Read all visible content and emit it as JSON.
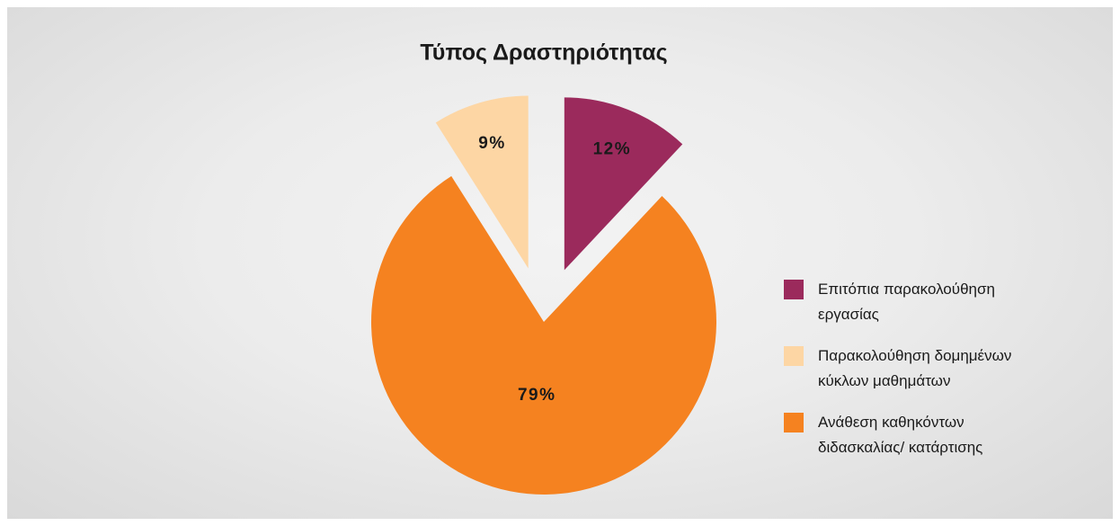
{
  "chart_data": {
    "type": "pie",
    "title": "Τύπος Δραστηριότητας",
    "categories": [
      "Επιτόπια παρακολούθηση εργασίας",
      "Παρακολούθηση δομημένων κύκλων μαθημάτων",
      "Ανάθεση καθηκόντων διδασκαλίας/ κατάρτισης"
    ],
    "values": [
      12,
      9,
      79
    ],
    "value_labels": [
      "12%",
      "9%",
      "79%"
    ],
    "colors": [
      "#9b2a5c",
      "#fdd6a4",
      "#f58220"
    ],
    "explode": [
      true,
      true,
      false
    ],
    "legend": "right"
  }
}
